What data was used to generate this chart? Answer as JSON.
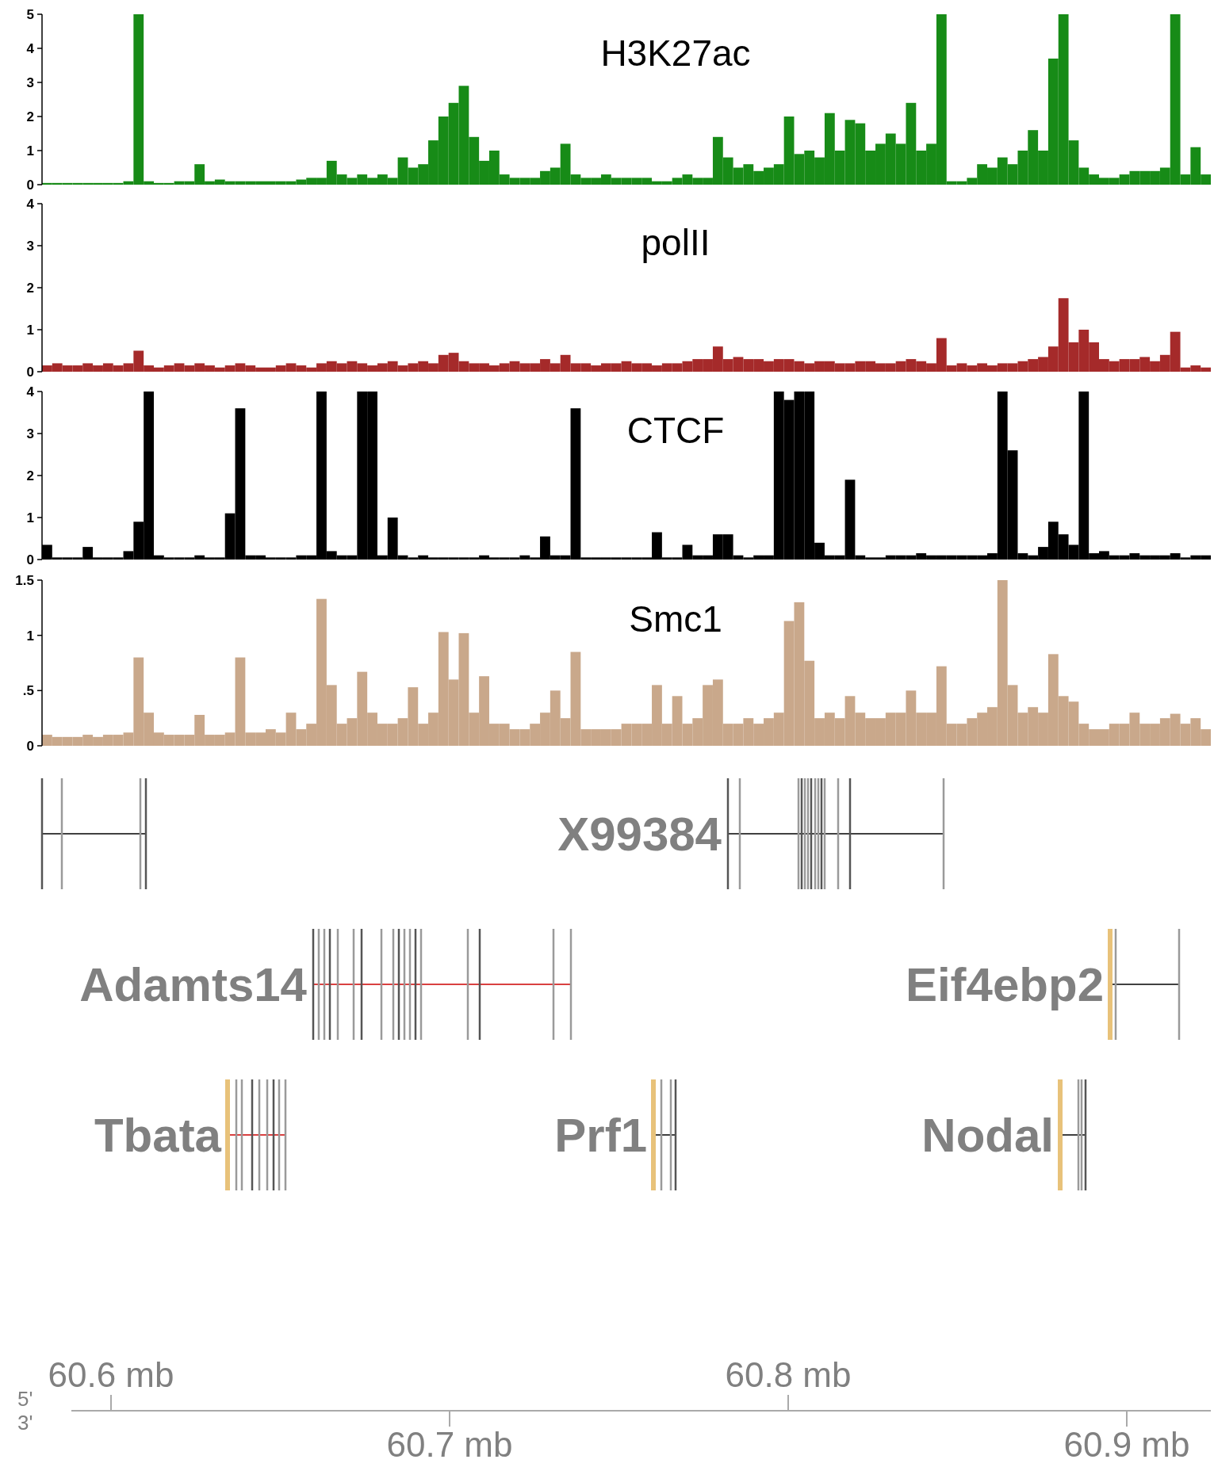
{
  "chart_data": [
    {
      "type": "bar",
      "title": "H3K27ac",
      "color": "#178b17",
      "ylim": [
        0,
        5
      ],
      "yticks": [
        0,
        1,
        2,
        3,
        4,
        5
      ],
      "categories": [
        null,
        null,
        null,
        null,
        null,
        null,
        null,
        null,
        null,
        null,
        null,
        null,
        null,
        null,
        null,
        null,
        null,
        null,
        null,
        null,
        null,
        null,
        null,
        null,
        null,
        null,
        null,
        null,
        null,
        null,
        null,
        null,
        null,
        null,
        null,
        null,
        null,
        null,
        null,
        null,
        null,
        null,
        null,
        null,
        null,
        null,
        null,
        null,
        null,
        null,
        null,
        null,
        null,
        null,
        null,
        null,
        null,
        null,
        null,
        null,
        null,
        null,
        null,
        null,
        null,
        null,
        null,
        null,
        null,
        null,
        null,
        null,
        null,
        null,
        null,
        null,
        null,
        null,
        null,
        null,
        null,
        null,
        null,
        null,
        null,
        null,
        null,
        null,
        null,
        null,
        null,
        null,
        null,
        null,
        null,
        null,
        null,
        null,
        null,
        null,
        null,
        null,
        null,
        null,
        null,
        null,
        null,
        null,
        null,
        null,
        null,
        null,
        null,
        null,
        null
      ],
      "values": [
        0.05,
        0.05,
        0.05,
        0.05,
        0.05,
        0.05,
        0.05,
        0.05,
        0.1,
        5,
        0.1,
        0.05,
        0.05,
        0.1,
        0.1,
        0.6,
        0.1,
        0.15,
        0.1,
        0.1,
        0.1,
        0.1,
        0.1,
        0.1,
        0.1,
        0.15,
        0.2,
        0.2,
        0.7,
        0.3,
        0.2,
        0.3,
        0.2,
        0.3,
        0.2,
        0.8,
        0.5,
        0.6,
        1.3,
        2.0,
        2.4,
        2.9,
        1.4,
        0.7,
        1.0,
        0.3,
        0.2,
        0.2,
        0.2,
        0.4,
        0.5,
        1.2,
        0.3,
        0.2,
        0.2,
        0.3,
        0.2,
        0.2,
        0.2,
        0.2,
        0.1,
        0.1,
        0.2,
        0.3,
        0.2,
        0.2,
        1.4,
        0.8,
        0.5,
        0.6,
        0.4,
        0.5,
        0.6,
        2.0,
        0.9,
        1.0,
        0.8,
        2.1,
        1.0,
        1.9,
        1.8,
        1.0,
        1.2,
        1.5,
        1.2,
        2.4,
        1.0,
        1.2,
        5,
        0.1,
        0.1,
        0.2,
        0.6,
        0.5,
        0.8,
        0.6,
        1.0,
        1.6,
        1.0,
        3.7,
        5,
        1.3,
        0.5,
        0.3,
        0.2,
        0.2,
        0.3,
        0.4,
        0.4,
        0.4,
        0.5,
        5,
        0.3,
        1.1,
        0.3
      ]
    },
    {
      "type": "bar",
      "title": "polII",
      "color": "#a52a2a",
      "ylim": [
        0,
        4
      ],
      "yticks": [
        0,
        1,
        2,
        3,
        4
      ],
      "categories": [
        null,
        null,
        null,
        null,
        null,
        null,
        null,
        null,
        null,
        null,
        null,
        null,
        null,
        null,
        null,
        null,
        null,
        null,
        null,
        null,
        null,
        null,
        null,
        null,
        null,
        null,
        null,
        null,
        null,
        null,
        null,
        null,
        null,
        null,
        null,
        null,
        null,
        null,
        null,
        null,
        null,
        null,
        null,
        null,
        null,
        null,
        null,
        null,
        null,
        null,
        null,
        null,
        null,
        null,
        null,
        null,
        null,
        null,
        null,
        null,
        null,
        null,
        null,
        null,
        null,
        null,
        null,
        null,
        null,
        null,
        null,
        null,
        null,
        null,
        null,
        null,
        null,
        null,
        null,
        null,
        null,
        null,
        null,
        null,
        null,
        null,
        null,
        null,
        null,
        null,
        null,
        null,
        null,
        null,
        null,
        null,
        null,
        null,
        null,
        null,
        null,
        null,
        null,
        null,
        null,
        null,
        null,
        null,
        null,
        null,
        null,
        null,
        null,
        null,
        null
      ],
      "values": [
        0.15,
        0.2,
        0.15,
        0.15,
        0.2,
        0.15,
        0.2,
        0.15,
        0.2,
        0.5,
        0.15,
        0.1,
        0.15,
        0.2,
        0.15,
        0.2,
        0.15,
        0.1,
        0.15,
        0.2,
        0.15,
        0.1,
        0.1,
        0.15,
        0.2,
        0.15,
        0.1,
        0.2,
        0.25,
        0.2,
        0.25,
        0.2,
        0.15,
        0.2,
        0.25,
        0.15,
        0.2,
        0.25,
        0.2,
        0.4,
        0.45,
        0.25,
        0.2,
        0.2,
        0.15,
        0.2,
        0.25,
        0.2,
        0.2,
        0.3,
        0.2,
        0.4,
        0.2,
        0.2,
        0.15,
        0.2,
        0.2,
        0.25,
        0.2,
        0.2,
        0.15,
        0.2,
        0.2,
        0.25,
        0.3,
        0.3,
        0.6,
        0.3,
        0.35,
        0.3,
        0.3,
        0.25,
        0.3,
        0.3,
        0.25,
        0.2,
        0.25,
        0.25,
        0.2,
        0.2,
        0.25,
        0.25,
        0.2,
        0.2,
        0.25,
        0.3,
        0.25,
        0.2,
        0.8,
        0.15,
        0.2,
        0.15,
        0.2,
        0.15,
        0.2,
        0.2,
        0.25,
        0.3,
        0.35,
        0.6,
        1.75,
        0.7,
        1.0,
        0.7,
        0.3,
        0.25,
        0.3,
        0.3,
        0.35,
        0.25,
        0.4,
        0.95,
        0.1,
        0.15,
        0.1
      ]
    },
    {
      "type": "bar",
      "title": "CTCF",
      "color": "#000000",
      "ylim": [
        0,
        4
      ],
      "yticks": [
        0,
        1,
        2,
        3,
        4
      ],
      "categories": [
        null,
        null,
        null,
        null,
        null,
        null,
        null,
        null,
        null,
        null,
        null,
        null,
        null,
        null,
        null,
        null,
        null,
        null,
        null,
        null,
        null,
        null,
        null,
        null,
        null,
        null,
        null,
        null,
        null,
        null,
        null,
        null,
        null,
        null,
        null,
        null,
        null,
        null,
        null,
        null,
        null,
        null,
        null,
        null,
        null,
        null,
        null,
        null,
        null,
        null,
        null,
        null,
        null,
        null,
        null,
        null,
        null,
        null,
        null,
        null,
        null,
        null,
        null,
        null,
        null,
        null,
        null,
        null,
        null,
        null,
        null,
        null,
        null,
        null,
        null,
        null,
        null,
        null,
        null,
        null,
        null,
        null,
        null,
        null,
        null,
        null,
        null,
        null,
        null,
        null,
        null,
        null,
        null,
        null,
        null,
        null,
        null,
        null,
        null,
        null,
        null,
        null,
        null,
        null,
        null,
        null,
        null,
        null,
        null,
        null,
        null,
        null,
        null,
        null,
        null
      ],
      "values": [
        0.35,
        0.05,
        0.05,
        0.05,
        0.3,
        0.05,
        0.05,
        0.05,
        0.2,
        0.9,
        4,
        0.1,
        0.05,
        0.05,
        0.05,
        0.1,
        0.05,
        0.05,
        1.1,
        3.6,
        0.1,
        0.1,
        0.05,
        0.05,
        0.05,
        0.1,
        0.1,
        4,
        0.2,
        0.1,
        0.1,
        4,
        4,
        0.1,
        1.0,
        0.1,
        0.05,
        0.1,
        0.05,
        0.05,
        0.05,
        0.05,
        0.05,
        0.1,
        0.05,
        0.05,
        0.05,
        0.1,
        0.05,
        0.55,
        0.1,
        0.1,
        3.6,
        0.05,
        0.05,
        0.05,
        0.05,
        0.05,
        0.05,
        0.05,
        0.65,
        0.05,
        0.05,
        0.35,
        0.1,
        0.1,
        0.6,
        0.6,
        0.1,
        0.05,
        0.1,
        0.1,
        4,
        3.8,
        4,
        4,
        0.4,
        0.1,
        0.1,
        1.9,
        0.1,
        0.05,
        0.05,
        0.1,
        0.1,
        0.1,
        0.15,
        0.1,
        0.1,
        0.1,
        0.1,
        0.1,
        0.1,
        0.15,
        4,
        2.6,
        0.15,
        0.1,
        0.3,
        0.9,
        0.6,
        0.35,
        4,
        0.15,
        0.2,
        0.1,
        0.1,
        0.15,
        0.1,
        0.1,
        0.1,
        0.15,
        0.05,
        0.1,
        0.1
      ]
    },
    {
      "type": "bar",
      "title": "Smc1",
      "color": "#c9a88b",
      "ylim": [
        0,
        1.5
      ],
      "yticks": [
        0,
        {
          "value": 0.5,
          "label": ".5"
        },
        1,
        {
          "value": 1.5,
          "label": "1.5"
        }
      ],
      "categories": [
        null,
        null,
        null,
        null,
        null,
        null,
        null,
        null,
        null,
        null,
        null,
        null,
        null,
        null,
        null,
        null,
        null,
        null,
        null,
        null,
        null,
        null,
        null,
        null,
        null,
        null,
        null,
        null,
        null,
        null,
        null,
        null,
        null,
        null,
        null,
        null,
        null,
        null,
        null,
        null,
        null,
        null,
        null,
        null,
        null,
        null,
        null,
        null,
        null,
        null,
        null,
        null,
        null,
        null,
        null,
        null,
        null,
        null,
        null,
        null,
        null,
        null,
        null,
        null,
        null,
        null,
        null,
        null,
        null,
        null,
        null,
        null,
        null,
        null,
        null,
        null,
        null,
        null,
        null,
        null,
        null,
        null,
        null,
        null,
        null,
        null,
        null,
        null,
        null,
        null,
        null,
        null,
        null,
        null,
        null,
        null,
        null,
        null,
        null,
        null,
        null,
        null,
        null,
        null,
        null,
        null,
        null,
        null,
        null,
        null,
        null,
        null,
        null,
        null,
        null
      ],
      "values": [
        0.1,
        0.08,
        0.08,
        0.08,
        0.1,
        0.08,
        0.1,
        0.1,
        0.12,
        0.8,
        0.3,
        0.12,
        0.1,
        0.1,
        0.1,
        0.28,
        0.1,
        0.1,
        0.12,
        0.8,
        0.12,
        0.12,
        0.15,
        0.12,
        0.3,
        0.15,
        0.2,
        1.33,
        0.55,
        0.2,
        0.25,
        0.67,
        0.3,
        0.2,
        0.2,
        0.25,
        0.53,
        0.2,
        0.3,
        1.03,
        0.6,
        1.02,
        0.3,
        0.63,
        0.2,
        0.2,
        0.15,
        0.15,
        0.2,
        0.3,
        0.5,
        0.25,
        0.85,
        0.15,
        0.15,
        0.15,
        0.15,
        0.2,
        0.2,
        0.2,
        0.55,
        0.2,
        0.45,
        0.2,
        0.25,
        0.55,
        0.6,
        0.2,
        0.2,
        0.25,
        0.2,
        0.25,
        0.3,
        1.13,
        1.3,
        0.77,
        0.25,
        0.3,
        0.25,
        0.45,
        0.3,
        0.25,
        0.25,
        0.3,
        0.3,
        0.5,
        0.3,
        0.3,
        0.72,
        0.2,
        0.2,
        0.25,
        0.3,
        0.35,
        1.5,
        0.55,
        0.3,
        0.35,
        0.3,
        0.83,
        0.45,
        0.4,
        0.2,
        0.15,
        0.15,
        0.2,
        0.2,
        0.3,
        0.2,
        0.2,
        0.25,
        0.29,
        0.2,
        0.25,
        0.15
      ]
    },
    {
      "type": "other",
      "annotations": [
        "X99384",
        "Adamts14",
        "Eif4ebp2",
        "Tbata",
        "Prf1",
        "Nodal",
        "60.6 mb",
        "60.7 mb",
        "60.8 mb",
        "60.9 mb",
        "5'",
        "3'"
      ]
    }
  ]
}
